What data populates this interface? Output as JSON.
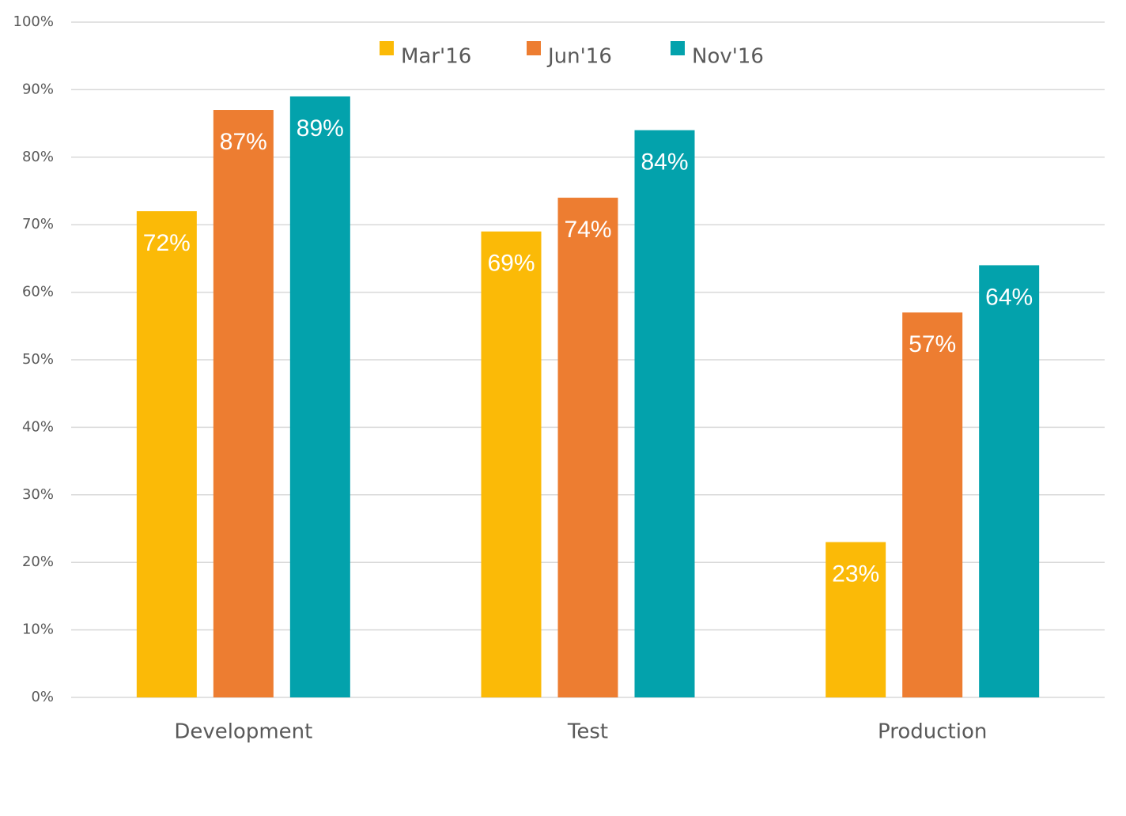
{
  "chart_data": {
    "type": "bar",
    "categories": [
      "Development",
      "Test",
      "Production"
    ],
    "series": [
      {
        "name": "Mar'16",
        "color": "#fbba07",
        "values": [
          72,
          69,
          23
        ],
        "value_labels": [
          "72%",
          "69%",
          "23%"
        ]
      },
      {
        "name": "Jun'16",
        "color": "#ed7d31",
        "values": [
          87,
          74,
          57
        ],
        "value_labels": [
          "87%",
          "74%",
          "57%"
        ]
      },
      {
        "name": "Nov'16",
        "color": "#03a2ac",
        "values": [
          89,
          84,
          64
        ],
        "value_labels": [
          "89%",
          "84%",
          "64%"
        ]
      }
    ],
    "ylim": [
      0,
      100
    ],
    "yticks": [
      {
        "value": 0,
        "label": "0%"
      },
      {
        "value": 10,
        "label": "10%"
      },
      {
        "value": 20,
        "label": "20%"
      },
      {
        "value": 30,
        "label": "30%"
      },
      {
        "value": 40,
        "label": "40%"
      },
      {
        "value": 50,
        "label": "50%"
      },
      {
        "value": 60,
        "label": "60%"
      },
      {
        "value": 70,
        "label": "70%"
      },
      {
        "value": 80,
        "label": "80%"
      },
      {
        "value": 90,
        "label": "90%"
      },
      {
        "value": 100,
        "label": "100%"
      }
    ],
    "grid": true,
    "legend": "top"
  }
}
